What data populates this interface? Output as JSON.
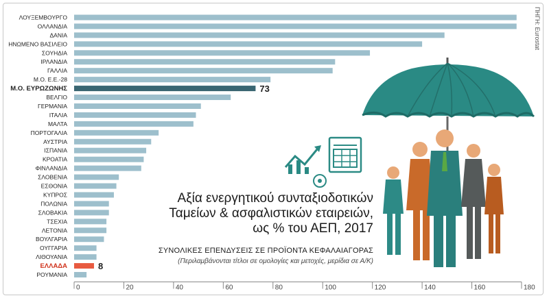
{
  "source": "ΠΗΓΗ: Eurostat",
  "title_lines": [
    "Αξία ενεργητικού συνταξιοδοτικών",
    "Ταμείων & ασφαλιστικών εταιρειών,",
    "ως % του ΑΕΠ, 2017"
  ],
  "subtitle": "ΣΥΝΟΛΙΚΕΣ ΕΠΕΝΔΥΣΕΙΣ ΣΕ ΠΡΟΪΟΝΤΑ ΚΕΦΑΛΑΙΑΓΟΡΑΣ",
  "note": "(Περιλαμβάνονται τίτλοι σε ομολογίες και μετοχές, μερίδια σε Α/Κ)",
  "icons": [
    "growth-chart-icon",
    "spreadsheet-document-icon",
    "umbrella-icon",
    "business-people-icon"
  ],
  "colors": {
    "bar": "#9dbfcc",
    "eurozone_bar": "#3a6672",
    "greece_bar": "#e85a40",
    "umbrella": "#2a8a84"
  },
  "chart_data": {
    "type": "bar",
    "orientation": "horizontal",
    "categories": [
      "ΛΟΥΞΕΜΒΟΥΡΓΟ",
      "ΟΛΛΑΝΔΙΑ",
      "ΔΑΝΙΑ",
      "ΗΝΩΜΕΝΟ ΒΑΣΙΛΕΙΟ",
      "ΣΟΥΗΔΙΑ",
      "ΙΡΛΑΝΔΙΑ",
      "ΓΑΛΛΙΑ",
      "Μ.Ο. Ε.Ε.-28",
      "Μ.Ο. ΕΥΡΩΖΩΝΗΣ",
      "ΒΕΛΓΙΟ",
      "ΓΕΡΜΑΝΙΑ",
      "ΙΤΑΛΙΑ",
      "ΜΑΛΤΑ",
      "ΠΟΡΤΟΓΑΛΙΑ",
      "ΑΥΣΤΡΙΑ",
      "ΙΣΠΑΝΙΑ",
      "ΚΡΟΑΤΙΑ",
      "ΦΙΝΛΑΝΔΙΑ",
      "ΣΛΟΒΕΝΙΑ",
      "ΕΣΘΟΝΙΑ",
      "ΚΥΠΡΟΣ",
      "ΠΟΛΩΝΙΑ",
      "ΣΛΟΒΑΚΙΑ",
      "ΤΣΕΧΙΑ",
      "ΛΕΤΟΝΙΑ",
      "ΒΟΥΛΓΑΡΙΑ",
      "ΟΥΓΓΑΡΙΑ",
      "ΛΙΘΟΥΑΝΙΑ",
      "ΕΛΛΑΔΑ",
      "ΡΟΥΜΑΝΙΑ"
    ],
    "values": [
      178,
      178,
      149,
      140,
      119,
      105,
      104,
      79,
      73,
      63,
      51,
      49,
      48,
      34,
      31,
      29,
      28,
      27,
      18,
      17,
      16,
      14,
      14,
      13,
      13,
      12,
      9,
      9,
      8,
      5
    ],
    "highlighted": {
      "Μ.Ο. ΕΥΡΩΖΩΝΗΣ": "eurozone_bar",
      "ΕΛΛΑΔΑ": "greece_bar"
    },
    "data_labels": {
      "Μ.Ο. ΕΥΡΩΖΩΝΗΣ": "73",
      "ΕΛΛΑΔΑ": "8"
    },
    "x_ticks": [
      "0",
      "20",
      "40",
      "60",
      "80",
      "100",
      "120",
      "140",
      "160",
      "180"
    ],
    "xlim": [
      0,
      180
    ],
    "xlabel": "",
    "ylabel": "",
    "grid": false
  }
}
